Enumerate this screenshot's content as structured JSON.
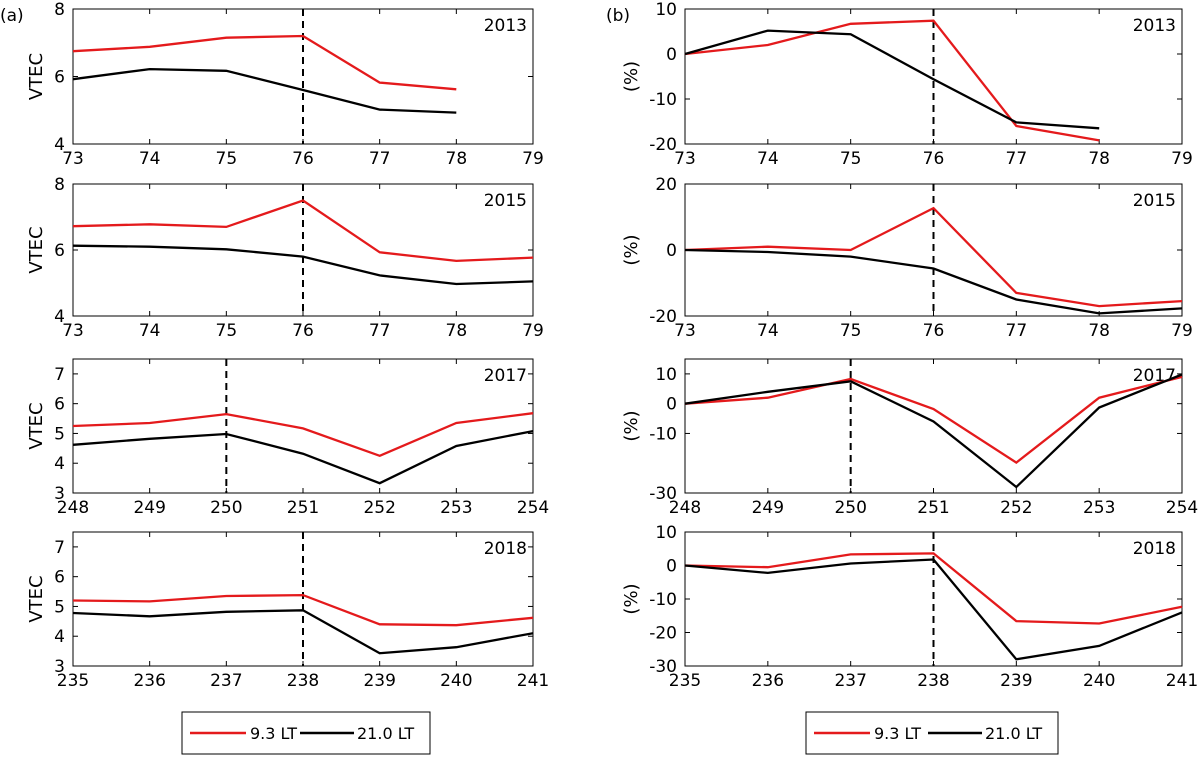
{
  "figure": {
    "panel_labels": [
      "(a)",
      "(b)"
    ],
    "legend": [
      {
        "label": "9.3 LT",
        "color": "#e41a1c"
      },
      {
        "label": "21.0 LT",
        "color": "#000000"
      }
    ]
  },
  "colors": {
    "lt93": "#e41a1c",
    "lt210": "#000000",
    "axis": "#000000"
  },
  "chart_data": [
    {
      "id": "a-2013",
      "type": "line",
      "year_label": "2013",
      "ylabel": "VTEC",
      "x": [
        73,
        74,
        75,
        76,
        77,
        78
      ],
      "xlim": [
        73,
        79
      ],
      "xticks": [
        73,
        74,
        75,
        76,
        77,
        78,
        79
      ],
      "ylim": [
        4,
        8
      ],
      "yticks": [
        4,
        6,
        8
      ],
      "event_x": 76,
      "series": [
        {
          "name": "9.3 LT",
          "values": [
            6.75,
            6.88,
            7.15,
            7.2,
            5.82,
            5.62
          ]
        },
        {
          "name": "21.0 LT",
          "values": [
            5.92,
            6.22,
            6.17,
            5.6,
            5.02,
            4.93
          ]
        }
      ]
    },
    {
      "id": "b-2013",
      "type": "line",
      "year_label": "2013",
      "ylabel": "(%)",
      "x": [
        73,
        74,
        75,
        76,
        77,
        78
      ],
      "xlim": [
        73,
        79
      ],
      "xticks": [
        73,
        74,
        75,
        76,
        77,
        78,
        79
      ],
      "ylim": [
        -20,
        10
      ],
      "yticks": [
        -20,
        -10,
        0,
        10
      ],
      "event_x": 76,
      "series": [
        {
          "name": "9.3 LT",
          "values": [
            0,
            2,
            6.7,
            7.4,
            -16,
            -19.2
          ]
        },
        {
          "name": "21.0 LT",
          "values": [
            0,
            5.2,
            4.4,
            -5.6,
            -15.2,
            -16.5
          ]
        }
      ]
    },
    {
      "id": "a-2015",
      "type": "line",
      "year_label": "2015",
      "ylabel": "VTEC",
      "x": [
        73,
        74,
        75,
        76,
        77,
        78,
        79
      ],
      "xlim": [
        73,
        79
      ],
      "xticks": [
        73,
        74,
        75,
        76,
        77,
        78,
        79
      ],
      "ylim": [
        4,
        8
      ],
      "yticks": [
        4,
        6,
        8
      ],
      "event_x": 76,
      "series": [
        {
          "name": "9.3 LT",
          "values": [
            6.72,
            6.78,
            6.7,
            7.5,
            5.93,
            5.67,
            5.77
          ]
        },
        {
          "name": "21.0 LT",
          "values": [
            6.13,
            6.1,
            6.02,
            5.8,
            5.23,
            4.97,
            5.05
          ]
        }
      ]
    },
    {
      "id": "b-2015",
      "type": "line",
      "year_label": "2015",
      "ylabel": "(%)",
      "x": [
        73,
        74,
        75,
        76,
        77,
        78,
        79
      ],
      "xlim": [
        73,
        79
      ],
      "xticks": [
        73,
        74,
        75,
        76,
        77,
        78,
        79
      ],
      "ylim": [
        -20,
        20
      ],
      "yticks": [
        -20,
        0,
        20
      ],
      "event_x": 76,
      "series": [
        {
          "name": "9.3 LT",
          "values": [
            0,
            1,
            0,
            12.7,
            -13,
            -17,
            -15.5
          ]
        },
        {
          "name": "21.0 LT",
          "values": [
            0,
            -0.6,
            -2,
            -5.6,
            -15,
            -19.2,
            -17.7
          ]
        }
      ]
    },
    {
      "id": "a-2017",
      "type": "line",
      "year_label": "2017",
      "ylabel": "VTEC",
      "x": [
        248,
        249,
        250,
        251,
        252,
        253,
        254
      ],
      "xlim": [
        248,
        254
      ],
      "xticks": [
        248,
        249,
        250,
        251,
        252,
        253,
        254
      ],
      "ylim": [
        3,
        7.5
      ],
      "yticks": [
        3,
        4,
        5,
        6,
        7
      ],
      "event_x": 250,
      "series": [
        {
          "name": "9.3 LT",
          "values": [
            5.25,
            5.35,
            5.65,
            5.17,
            4.25,
            5.35,
            5.68
          ]
        },
        {
          "name": "21.0 LT",
          "values": [
            4.62,
            4.82,
            4.98,
            4.32,
            3.33,
            4.58,
            5.08
          ]
        }
      ]
    },
    {
      "id": "b-2017",
      "type": "line",
      "year_label": "2017",
      "ylabel": "(%)",
      "x": [
        248,
        249,
        250,
        251,
        252,
        253,
        254
      ],
      "xlim": [
        248,
        254
      ],
      "xticks": [
        248,
        249,
        250,
        251,
        252,
        253,
        254
      ],
      "ylim": [
        -30,
        15
      ],
      "yticks": [
        -30,
        -10,
        0,
        10
      ],
      "event_x": 250,
      "series": [
        {
          "name": "9.3 LT",
          "values": [
            0,
            2,
            8.3,
            -1.8,
            -19.8,
            2,
            9
          ]
        },
        {
          "name": "21.0 LT",
          "values": [
            0,
            4,
            7.5,
            -6,
            -28,
            -1.3,
            9.8
          ]
        }
      ]
    },
    {
      "id": "a-2018",
      "type": "line",
      "year_label": "2018",
      "ylabel": "VTEC",
      "x": [
        235,
        236,
        237,
        238,
        239,
        240,
        241
      ],
      "xlim": [
        235,
        241
      ],
      "xticks": [
        235,
        236,
        237,
        238,
        239,
        240,
        241
      ],
      "ylim": [
        3,
        7.5
      ],
      "yticks": [
        3,
        4,
        5,
        6,
        7
      ],
      "event_x": 238,
      "series": [
        {
          "name": "9.3 LT",
          "values": [
            5.2,
            5.17,
            5.35,
            5.38,
            4.4,
            4.37,
            4.62
          ]
        },
        {
          "name": "21.0 LT",
          "values": [
            4.78,
            4.67,
            4.82,
            4.87,
            3.43,
            3.63,
            4.1
          ]
        }
      ]
    },
    {
      "id": "b-2018",
      "type": "line",
      "year_label": "2018",
      "ylabel": "(%)",
      "x": [
        235,
        236,
        237,
        238,
        239,
        240,
        241
      ],
      "xlim": [
        235,
        241
      ],
      "xticks": [
        235,
        236,
        237,
        238,
        239,
        240,
        241
      ],
      "ylim": [
        -30,
        10
      ],
      "yticks": [
        -30,
        -20,
        -10,
        0,
        10
      ],
      "event_x": 238,
      "series": [
        {
          "name": "9.3 LT",
          "values": [
            0,
            -0.5,
            3.3,
            3.6,
            -16.6,
            -17.3,
            -12.3
          ]
        },
        {
          "name": "21.0 LT",
          "values": [
            0,
            -2.2,
            0.6,
            1.8,
            -28,
            -24,
            -14
          ]
        }
      ]
    }
  ]
}
